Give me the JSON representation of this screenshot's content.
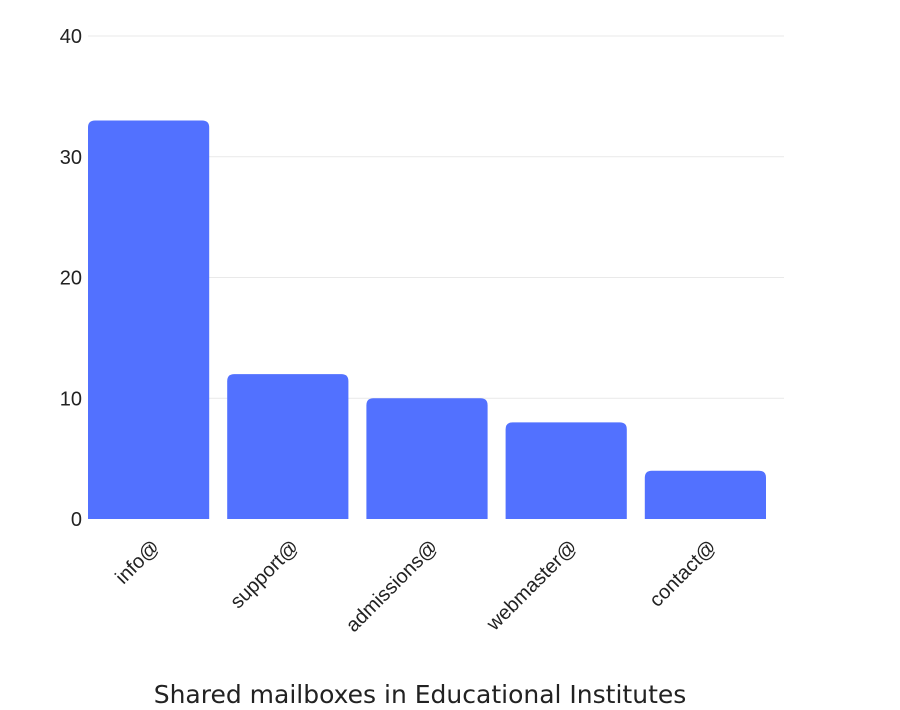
{
  "chart_data": {
    "type": "bar",
    "title": "Shared mailboxes in Educational Institutes",
    "categories": [
      "info@",
      "support@",
      "admissions@",
      "webmaster@",
      "contact@"
    ],
    "values": [
      33,
      12,
      10,
      8,
      4
    ],
    "ylim": [
      0,
      40
    ],
    "yticks": [
      0,
      10,
      20,
      30,
      40
    ],
    "grid": true,
    "bar_color": "#5271ff",
    "xlabel": "",
    "ylabel": ""
  }
}
